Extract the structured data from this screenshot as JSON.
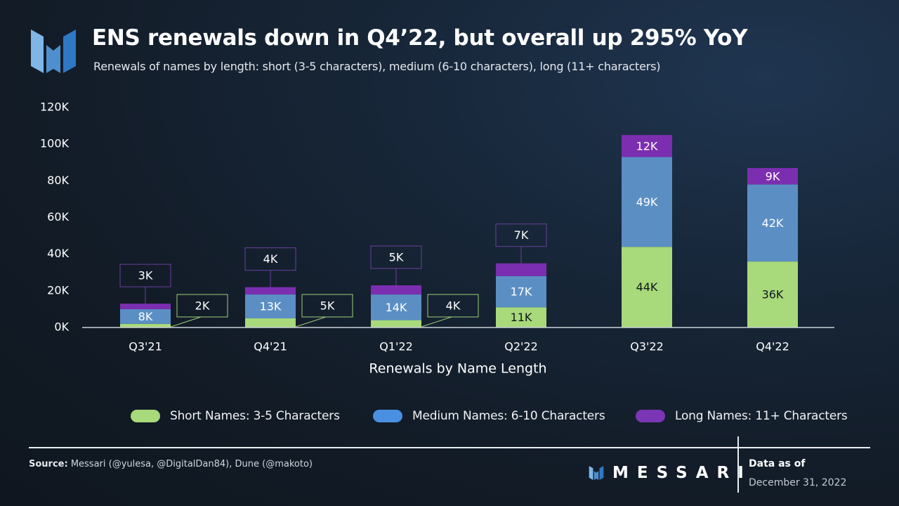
{
  "header": {
    "title": "ENS renewals down in Q4’22, but overall up 295% YoY",
    "subtitle": "Renewals of names by length: short (3-5 characters), medium (6-10 characters), long (11+ characters)",
    "logo_icon": "messari-logo-icon"
  },
  "colors": {
    "short": "#a8d97a",
    "medium": "#5b8fc4",
    "long": "#7b2fb0",
    "axis": "#c9d1d9",
    "short_callout_border": "#9ccf78",
    "long_callout_border": "#6a3fa0",
    "legend_medium": "#4a90e2",
    "legend_long": "#7b35b5"
  },
  "chart_data": {
    "type": "bar",
    "stacked": true,
    "title": "ENS renewals down in Q4’22, but overall up 295% YoY",
    "xlabel": "Renewals by Name Length",
    "ylabel": "",
    "ylim": [
      0,
      120000
    ],
    "yticks": [
      0,
      20000,
      40000,
      60000,
      80000,
      100000,
      120000
    ],
    "ytick_labels": [
      "0K",
      "20K",
      "40K",
      "60K",
      "80K",
      "100K",
      "120K"
    ],
    "grid": false,
    "categories": [
      "Q3'21",
      "Q4'21",
      "Q1'22",
      "Q2'22",
      "Q3'22",
      "Q4'22"
    ],
    "series": [
      {
        "name": "Short Names: 3-5 Characters",
        "key": "short",
        "values": [
          2000,
          5000,
          4000,
          11000,
          44000,
          36000
        ],
        "labels": [
          "2K",
          "5K",
          "4K",
          "11K",
          "44K",
          "36K"
        ]
      },
      {
        "name": "Medium Names: 6-10 Characters",
        "key": "medium",
        "values": [
          8000,
          13000,
          14000,
          17000,
          49000,
          42000
        ],
        "labels": [
          "8K",
          "13K",
          "14K",
          "17K",
          "49K",
          "42K"
        ]
      },
      {
        "name": "Long Names: 11+ Characters",
        "key": "long",
        "values": [
          3000,
          4000,
          5000,
          7000,
          12000,
          9000
        ],
        "labels": [
          "3K",
          "4K",
          "5K",
          "7K",
          "12K",
          "9K"
        ]
      }
    ],
    "legend_position": "bottom-center"
  },
  "legend": [
    {
      "label": "Short Names: 3-5 Characters",
      "key": "short"
    },
    {
      "label": "Medium Names: 6-10 Characters",
      "key": "legend_medium"
    },
    {
      "label": "Long Names: 11+ Characters",
      "key": "legend_long"
    }
  ],
  "footer": {
    "source_label": "Source:",
    "source_text": " Messari (@yulesa, @DigitalDan84), Dune (@makoto)",
    "brand": "MESSARI",
    "data_as_of_label": "Data as of",
    "data_as_of_date": "December 31, 2022"
  }
}
